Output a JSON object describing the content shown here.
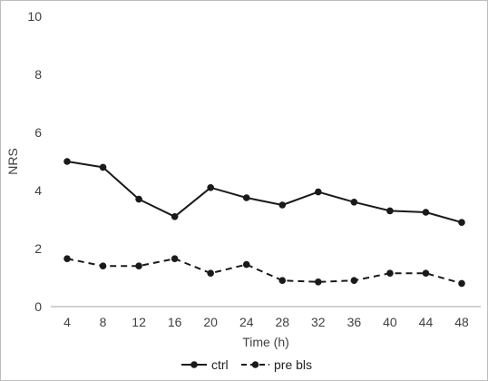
{
  "chart_data": {
    "type": "line",
    "title": "",
    "xlabel": "Time (h)",
    "ylabel": "NRS",
    "x": [
      4,
      8,
      12,
      16,
      20,
      24,
      28,
      32,
      36,
      40,
      44,
      48
    ],
    "xticklabels": [
      "4",
      "8",
      "12",
      "16",
      "20",
      "24",
      "28",
      "32",
      "36",
      "40",
      "44",
      "48"
    ],
    "ylim": [
      0,
      10
    ],
    "yticks": [
      0,
      2,
      4,
      6,
      8,
      10
    ],
    "yticklabels": [
      "0",
      "2",
      "4",
      "6",
      "8",
      "10"
    ],
    "grid": false,
    "legend_position": "bottom",
    "series": [
      {
        "name": "ctrl",
        "line_style": "solid",
        "color": "#1a1a1a",
        "values": [
          5.0,
          4.8,
          3.7,
          3.1,
          4.1,
          3.75,
          3.5,
          3.95,
          3.6,
          3.3,
          3.25,
          2.9
        ]
      },
      {
        "name": "pre bls",
        "line_style": "dashed",
        "color": "#1a1a1a",
        "values": [
          1.65,
          1.4,
          1.4,
          1.65,
          1.15,
          1.45,
          0.9,
          0.85,
          0.9,
          1.15,
          1.15,
          0.8
        ]
      }
    ]
  }
}
